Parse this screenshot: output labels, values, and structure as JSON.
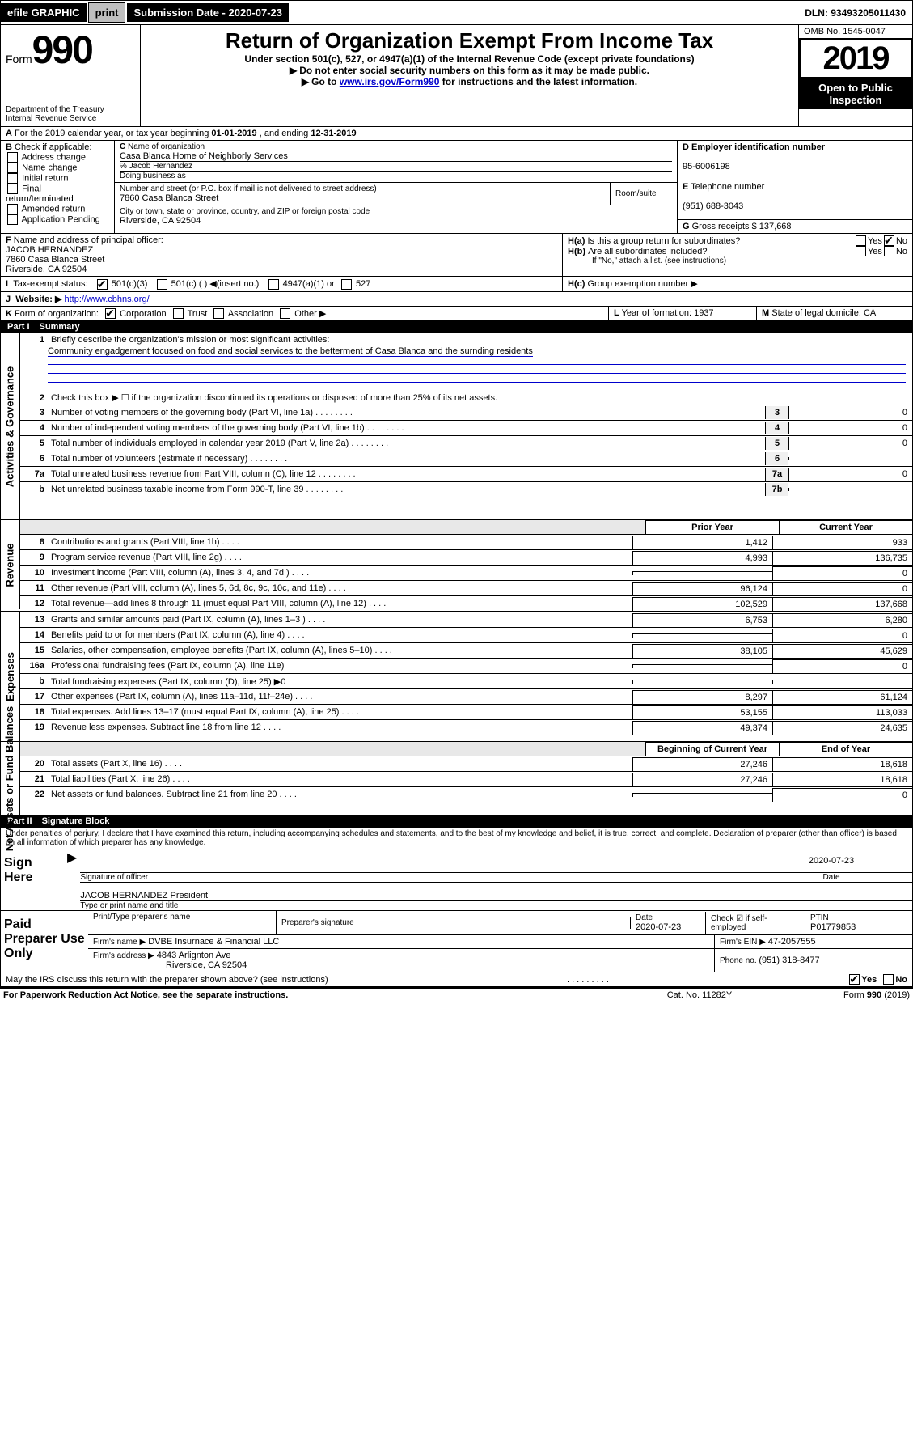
{
  "topbar": {
    "efile": "efile GRAPHIC",
    "print": "print",
    "sub_lbl": "Submission Date - ",
    "sub_date": "2020-07-23",
    "dln": "DLN: 93493205011430"
  },
  "header": {
    "form_prefix": "Form",
    "form_num": "990",
    "title": "Return of Organization Exempt From Income Tax",
    "subtitle": "Under section 501(c), 527, or 4947(a)(1) of the Internal Revenue Code (except private foundations)",
    "note1": "Do not enter social security numbers on this form as it may be made public.",
    "note2_pre": "Go to ",
    "note2_link": "www.irs.gov/Form990",
    "note2_post": " for instructions and the latest information.",
    "dept": "Department of the Treasury",
    "irs": "Internal Revenue Service",
    "omb": "OMB No. 1545-0047",
    "year": "2019",
    "open": "Open to Public Inspection"
  },
  "A": {
    "text": "For the 2019 calendar year, or tax year beginning ",
    "begin": "01-01-2019",
    "mid": " , and ending ",
    "end": "12-31-2019"
  },
  "B": {
    "hdr": "Check if applicable:",
    "addr": "Address change",
    "name": "Name change",
    "init": "Initial return",
    "final": "Final return/terminated",
    "amend": "Amended return",
    "app": "Application Pending"
  },
  "C": {
    "lbl": "Name of organization",
    "org": "Casa Blanca Home of Neighborly Services",
    "care": "℅ Jacob Hernandez",
    "dba_lbl": "Doing business as",
    "dba": "",
    "addr_lbl": "Number and street (or P.O. box if mail is not delivered to street address)",
    "room": "Room/suite",
    "street": "7860 Casa Blanca Street",
    "city_lbl": "City or town, state or province, country, and ZIP or foreign postal code",
    "city": "Riverside, CA  92504"
  },
  "D": {
    "lbl": "Employer identification number",
    "ein": "95-6006198"
  },
  "E": {
    "lbl": "Telephone number",
    "phone": "(951) 688-3043"
  },
  "G": {
    "lbl": "Gross receipts $",
    "val": "137,668"
  },
  "F": {
    "lbl": "Name and address of principal officer:",
    "name": "JACOB HERNANDEZ",
    "l1": "7860 Casa Blanca Street",
    "l2": "Riverside, CA  92504"
  },
  "H": {
    "a": "Is this a group return for subordinates?",
    "b": "Are all subordinates included?",
    "bnote": "If \"No,\" attach a list. (see instructions)",
    "c": "Group exemption number ▶",
    "yes": "Yes",
    "no": "No"
  },
  "I": {
    "lbl": "Tax-exempt status:",
    "o1": "501(c)(3)",
    "o2": "501(c) (    ) ◀(insert no.)",
    "o3": "4947(a)(1) or",
    "o4": "527"
  },
  "J": {
    "lbl": "Website: ▶",
    "url": "http://www.cbhns.org/"
  },
  "K": {
    "lbl": "Form of organization:",
    "corp": "Corporation",
    "trust": "Trust",
    "assoc": "Association",
    "other": "Other ▶"
  },
  "L": {
    "lbl": "Year of formation: ",
    "val": "1937"
  },
  "M": {
    "lbl": "State of legal domicile: ",
    "val": "CA"
  },
  "p1": {
    "title": "Part I",
    "name": "Summary",
    "l1": "Briefly describe the organization's mission or most significant activities:",
    "mission": "Community engadgement focused on food and social services to the betterment of Casa Blanca and the surnding residents",
    "l2": "Check this box ▶ ☐  if the organization discontinued its operations or disposed of more than 25% of its net assets.",
    "rows_a": [
      {
        "n": "3",
        "t": "Number of voting members of the governing body (Part VI, line 1a)",
        "box": "3",
        "v": "0"
      },
      {
        "n": "4",
        "t": "Number of independent voting members of the governing body (Part VI, line 1b)",
        "box": "4",
        "v": "0"
      },
      {
        "n": "5",
        "t": "Total number of individuals employed in calendar year 2019 (Part V, line 2a)",
        "box": "5",
        "v": "0"
      },
      {
        "n": "6",
        "t": "Total number of volunteers (estimate if necessary)",
        "box": "6",
        "v": ""
      },
      {
        "n": "7a",
        "t": "Total unrelated business revenue from Part VIII, column (C), line 12",
        "box": "7a",
        "v": "0"
      },
      {
        "n": "b",
        "t": "Net unrelated business taxable income from Form 990-T, line 39",
        "box": "7b",
        "v": ""
      }
    ],
    "hdr_prior": "Prior Year",
    "hdr_curr": "Current Year",
    "rev": [
      {
        "n": "8",
        "t": "Contributions and grants (Part VIII, line 1h)",
        "p": "1,412",
        "c": "933"
      },
      {
        "n": "9",
        "t": "Program service revenue (Part VIII, line 2g)",
        "p": "4,993",
        "c": "136,735"
      },
      {
        "n": "10",
        "t": "Investment income (Part VIII, column (A), lines 3, 4, and 7d )",
        "p": "",
        "c": "0"
      },
      {
        "n": "11",
        "t": "Other revenue (Part VIII, column (A), lines 5, 6d, 8c, 9c, 10c, and 11e)",
        "p": "96,124",
        "c": "0"
      },
      {
        "n": "12",
        "t": "Total revenue—add lines 8 through 11 (must equal Part VIII, column (A), line 12)",
        "p": "102,529",
        "c": "137,668"
      }
    ],
    "exp": [
      {
        "n": "13",
        "t": "Grants and similar amounts paid (Part IX, column (A), lines 1–3 )",
        "p": "6,753",
        "c": "6,280"
      },
      {
        "n": "14",
        "t": "Benefits paid to or for members (Part IX, column (A), line 4)",
        "p": "",
        "c": "0"
      },
      {
        "n": "15",
        "t": "Salaries, other compensation, employee benefits (Part IX, column (A), lines 5–10)",
        "p": "38,105",
        "c": "45,629"
      },
      {
        "n": "16a",
        "t": "Professional fundraising fees (Part IX, column (A), line 11e)",
        "p": "",
        "c": "0"
      },
      {
        "n": "b",
        "t": "Total fundraising expenses (Part IX, column (D), line 25) ▶0",
        "p": "",
        "c": ""
      },
      {
        "n": "17",
        "t": "Other expenses (Part IX, column (A), lines 11a–11d, 11f–24e)",
        "p": "8,297",
        "c": "61,124"
      },
      {
        "n": "18",
        "t": "Total expenses. Add lines 13–17 (must equal Part IX, column (A), line 25)",
        "p": "53,155",
        "c": "113,033"
      },
      {
        "n": "19",
        "t": "Revenue less expenses. Subtract line 18 from line 12",
        "p": "49,374",
        "c": "24,635"
      }
    ],
    "hdr_beg": "Beginning of Current Year",
    "hdr_end": "End of Year",
    "na": [
      {
        "n": "20",
        "t": "Total assets (Part X, line 16)",
        "p": "27,246",
        "c": "18,618"
      },
      {
        "n": "21",
        "t": "Total liabilities (Part X, line 26)",
        "p": "27,246",
        "c": "18,618"
      },
      {
        "n": "22",
        "t": "Net assets or fund balances. Subtract line 21 from line 20",
        "p": "",
        "c": "0"
      }
    ],
    "side_ag": "Activities & Governance",
    "side_rev": "Revenue",
    "side_exp": "Expenses",
    "side_na": "Net Assets or Fund Balances"
  },
  "p2": {
    "title": "Part II",
    "name": "Signature Block",
    "decl": "Under penalties of perjury, I declare that I have examined this return, including accompanying schedules and statements, and to the best of my knowledge and belief, it is true, correct, and complete. Declaration of preparer (other than officer) is based on all information of which preparer has any knowledge.",
    "sign": "Sign Here",
    "sig_lbl": "Signature of officer",
    "date_lbl": "Date",
    "sig_date": "2020-07-23",
    "off_name": "JACOB HERNANDEZ  President",
    "type_lbl": "Type or print name and title",
    "paid": "Paid Preparer Use Only",
    "pp_name_lbl": "Print/Type preparer's name",
    "pp_sig_lbl": "Preparer's signature",
    "pp_date_lbl": "Date",
    "pp_date": "2020-07-23",
    "pp_chk": "Check ☑ if self-employed",
    "ptin_lbl": "PTIN",
    "ptin": "P01779853",
    "firm_lbl": "Firm's name   ▶",
    "firm": "DVBE Insurnace & Financial LLC",
    "fein_lbl": "Firm's EIN ▶",
    "fein": "47-2057555",
    "faddr_lbl": "Firm's address ▶",
    "faddr1": "4843 Arlignton Ave",
    "faddr2": "Riverside, CA  92504",
    "fphone_lbl": "Phone no. ",
    "fphone": "(951) 318-8477",
    "discuss": "May the IRS discuss this return with the preparer shown above? (see instructions)",
    "yes": "Yes",
    "no": "No"
  },
  "ftr": {
    "l": "For Paperwork Reduction Act Notice, see the separate instructions.",
    "m": "Cat. No. 11282Y",
    "r": "Form 990 (2019)"
  }
}
